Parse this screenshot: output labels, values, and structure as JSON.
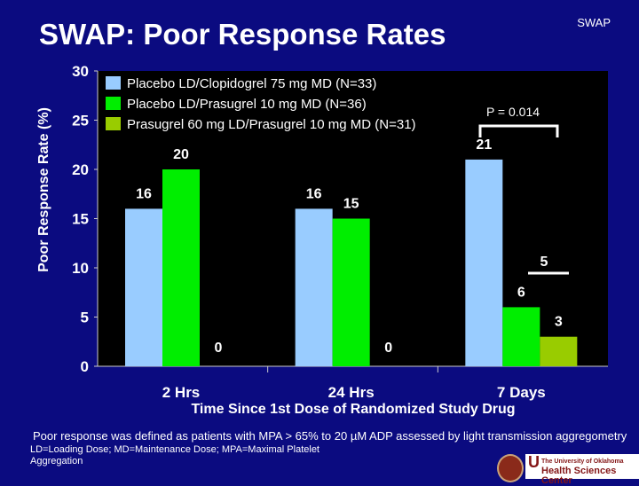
{
  "title": "SWAP: Poor Response Rates",
  "corner_label": "SWAP",
  "footnote": "Poor response was defined as patients with MPA > 65% to 20 µM ADP assessed by light transmission aggregometry",
  "abbreviations": "LD=Loading Dose; MD=Maintenance Dose; MPA=Maximal Platelet Aggregation",
  "logo_text": {
    "line1": "The University of Oklahoma",
    "line2": "Health Sciences Center"
  },
  "chart_data": {
    "type": "bar",
    "title": "",
    "ylabel": "Poor Response Rate (%)",
    "xlabel": "Time Since 1st Dose of Randomized Study Drug",
    "ylim": [
      0,
      30
    ],
    "yticks": [
      0,
      5,
      10,
      15,
      20,
      25,
      30
    ],
    "categories": [
      "2 Hrs",
      "24 Hrs",
      "7 Days"
    ],
    "legend_position": "top-left",
    "series": [
      {
        "name": "Placebo LD/Clopidogrel 75 mg MD (N=33)",
        "color": "#99ccff",
        "values": [
          16,
          16,
          21
        ]
      },
      {
        "name": "Placebo LD/Prasugrel 10 mg MD (N=36)",
        "color": "#00ee00",
        "values": [
          20,
          15,
          6
        ]
      },
      {
        "name": "Prasugrel 60 mg LD/Prasugrel 10 mg MD (N=31)",
        "color": "#99cc00",
        "values": [
          0,
          0,
          3
        ]
      }
    ],
    "annotations": [
      {
        "text": "P = 0.014"
      },
      {
        "text": "5"
      }
    ]
  }
}
